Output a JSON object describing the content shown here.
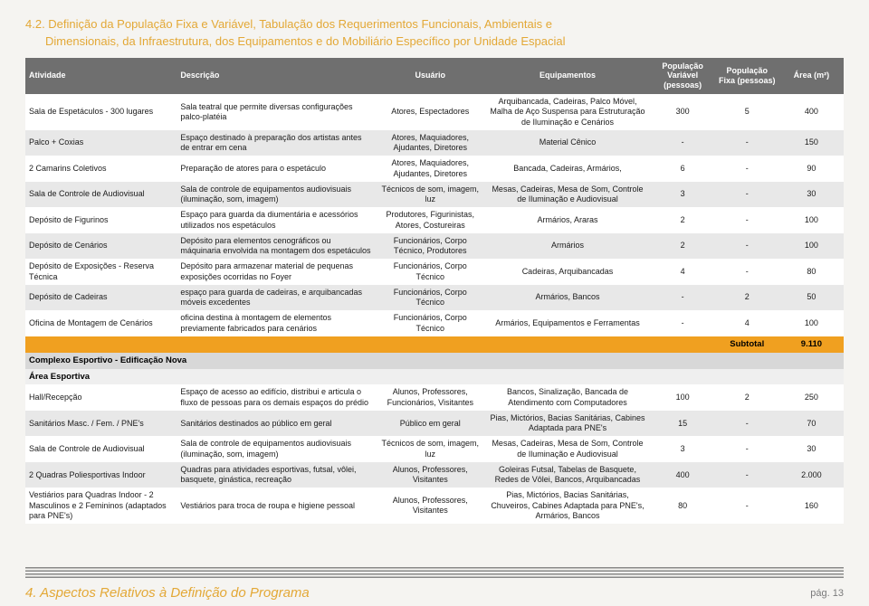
{
  "heading": {
    "line1": "4.2. Definição da População Fixa e Variável, Tabulação dos Requerimentos Funcionais, Ambientais e",
    "line2": "Dimensionais, da Infraestrutura, dos Equipamentos e do Mobiliário Específico por Unidade Espacial"
  },
  "columns": [
    {
      "key": "atv",
      "label": "Atividade",
      "align": "left"
    },
    {
      "key": "desc",
      "label": "Descrição",
      "align": "left"
    },
    {
      "key": "usr",
      "label": "Usuário",
      "align": "center"
    },
    {
      "key": "equip",
      "label": "Equipamentos",
      "align": "center"
    },
    {
      "key": "pvar",
      "label": "População Variável (pessoas)",
      "align": "center"
    },
    {
      "key": "pfix",
      "label": "População Fixa (pessoas)",
      "align": "center"
    },
    {
      "key": "area",
      "label": "Área (m²)",
      "align": "center"
    }
  ],
  "sections": [
    {
      "rows": [
        {
          "atv": "Sala de Espetáculos - 300 lugares",
          "desc": "Sala teatral que permite diversas configurações palco-platéia",
          "usr": "Atores, Espectadores",
          "equip": "Arquibancada, Cadeiras, Palco Móvel, Malha de Aço Suspensa para Estruturação de Iluminação e Cenários",
          "pvar": "300",
          "pfix": "5",
          "area": "400"
        },
        {
          "atv": "Palco + Coxias",
          "desc": "Espaço destinado à preparação dos artistas antes de entrar em cena",
          "usr": "Atores, Maquiadores, Ajudantes, Diretores",
          "equip": "Material Cênico",
          "pvar": "-",
          "pfix": "-",
          "area": "150"
        },
        {
          "atv": "2 Camarins Coletivos",
          "desc": "Preparação de atores para o espetáculo",
          "usr": "Atores, Maquiadores, Ajudantes, Diretores",
          "equip": "Bancada, Cadeiras, Armários,",
          "pvar": "6",
          "pfix": "-",
          "area": "90"
        },
        {
          "atv": "Sala de Controle de Audiovisual",
          "desc": "Sala de controle de equipamentos audiovisuais (iluminação, som, imagem)",
          "usr": "Técnicos de som, imagem, luz",
          "equip": "Mesas, Cadeiras, Mesa de Som, Controle de Iluminação e Audiovisual",
          "pvar": "3",
          "pfix": "-",
          "area": "30"
        },
        {
          "atv": "Depósito de Figurinos",
          "desc": "Espaço para guarda da diumentária e acessórios utilizados nos espetáculos",
          "usr": "Produtores, Figurinistas, Atores, Costureiras",
          "equip": "Armários, Araras",
          "pvar": "2",
          "pfix": "-",
          "area": "100"
        },
        {
          "atv": "Depósito de Cenários",
          "desc": "Depósito para elementos cenográficos ou máquinaria envolvida na montagem dos espetáculos",
          "usr": "Funcionários, Corpo Técnico, Produtores",
          "equip": "Armários",
          "pvar": "2",
          "pfix": "-",
          "area": "100"
        },
        {
          "atv": "Depósito de Exposições - Reserva Técnica",
          "desc": "Depósito para armazenar material de pequenas exposições ocorridas no Foyer",
          "usr": "Funcionários, Corpo Técnico",
          "equip": "Cadeiras, Arquibancadas",
          "pvar": "4",
          "pfix": "-",
          "area": "80"
        },
        {
          "atv": "Depósito de Cadeiras",
          "desc": "espaço para guarda de cadeiras, e arquibancadas móveis excedentes",
          "usr": "Funcionários, Corpo Técnico",
          "equip": "Armários, Bancos",
          "pvar": "-",
          "pfix": "2",
          "area": "50"
        },
        {
          "atv": "Oficina de Montagem de Cenários",
          "desc": "oficina destina à montagem de elementos previamente fabricados para cenários",
          "usr": "Funcionários, Corpo Técnico",
          "equip": "Armários, Equipamentos e Ferramentas",
          "pvar": "-",
          "pfix": "4",
          "area": "100"
        }
      ],
      "subtotal": {
        "label": "Subtotal",
        "value": "9.110"
      }
    },
    {
      "catLabel": "Complexo Esportivo - Edificação Nova",
      "cat2Label": "Área Esportiva",
      "rows": [
        {
          "atv": "Hall/Recepção",
          "desc": "Espaço de acesso ao edifício, distribui e articula o fluxo de pessoas para os demais espaços do prédio",
          "usr": "Alunos, Professores, Funcionários, Visitantes",
          "equip": "Bancos, Sinalização, Bancada de Atendimento com Computadores",
          "pvar": "100",
          "pfix": "2",
          "area": "250"
        },
        {
          "atv": "Sanitários Masc. / Fem. / PNE's",
          "desc": "Sanitários destinados ao público em geral",
          "usr": "Público em geral",
          "equip": "Pias, Mictórios, Bacias Sanitárias, Cabines Adaptada para PNE's",
          "pvar": "15",
          "pfix": "-",
          "area": "70"
        },
        {
          "atv": "Sala de Controle de Audiovisual",
          "desc": "Sala de controle de equipamentos audiovisuais (iluminação, som, imagem)",
          "usr": "Técnicos de som, imagem, luz",
          "equip": "Mesas, Cadeiras, Mesa de Som, Controle de Iluminação e Audiovisual",
          "pvar": "3",
          "pfix": "-",
          "area": "30"
        },
        {
          "atv": "2 Quadras Poliesportivas Indoor",
          "desc": "Quadras para atividades esportivas, futsal, vôlei, basquete, ginástica, recreação",
          "usr": "Alunos, Professores, Visitantes",
          "equip": "Goleiras Futsal, Tabelas de Basquete, Redes de Vôlei, Bancos, Arquibancadas",
          "pvar": "400",
          "pfix": "-",
          "area": "2.000"
        },
        {
          "atv": "Vestiários para Quadras Indoor - 2 Masculinos e 2 Femininos (adaptados para PNE's)",
          "desc": "Vestiários para troca de roupa e higiene pessoal",
          "usr": "Alunos, Professores, Visitantes",
          "equip": "Pias, Mictórios, Bacias Sanitárias, Chuveiros, Cabines Adaptada para PNE's, Armários, Bancos",
          "pvar": "80",
          "pfix": "-",
          "area": "160"
        }
      ]
    }
  ],
  "footer": {
    "title": "4. Aspectos Relativos à Definição do Programa",
    "page": "pág. 13"
  },
  "colors": {
    "accent": "#e3a836",
    "header_bg": "#6f6f6f",
    "header_fg": "#ffffff",
    "row_even": "#e8e8e8",
    "row_odd": "#ffffff",
    "subtotal_bg": "#f0a020",
    "page_bg": "#f5f4f1"
  }
}
